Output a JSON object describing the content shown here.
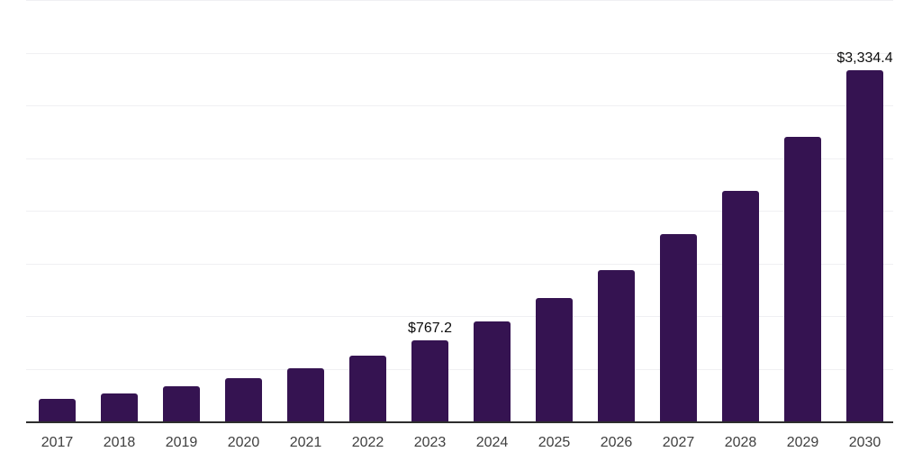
{
  "chart_data": {
    "type": "bar",
    "title": "",
    "xlabel": "",
    "ylabel": "",
    "categories": [
      "2017",
      "2018",
      "2019",
      "2020",
      "2021",
      "2022",
      "2023",
      "2024",
      "2025",
      "2026",
      "2027",
      "2028",
      "2029",
      "2030"
    ],
    "values": [
      217.7,
      268.6,
      331.3,
      408.7,
      504.2,
      621.9,
      767.2,
      946.4,
      1167.5,
      1440.3,
      1776.7,
      2191.8,
      2703.8,
      3334.4
    ],
    "data_labels": {
      "2023": "$767.2",
      "2030": "$3,334.4"
    },
    "ylim": [
      0,
      4000
    ],
    "gridline_step": 500,
    "grid": "horizontal-only",
    "y_tick_labels_visible": false,
    "legend": "none",
    "colors": {
      "bar": "#351351",
      "axis_line": "#2d2d2d",
      "gridline": "#f0f0f3",
      "x_tick_label": "#3f3f3f",
      "value_label": "#0c0c0c",
      "background": "#ffffff"
    }
  }
}
